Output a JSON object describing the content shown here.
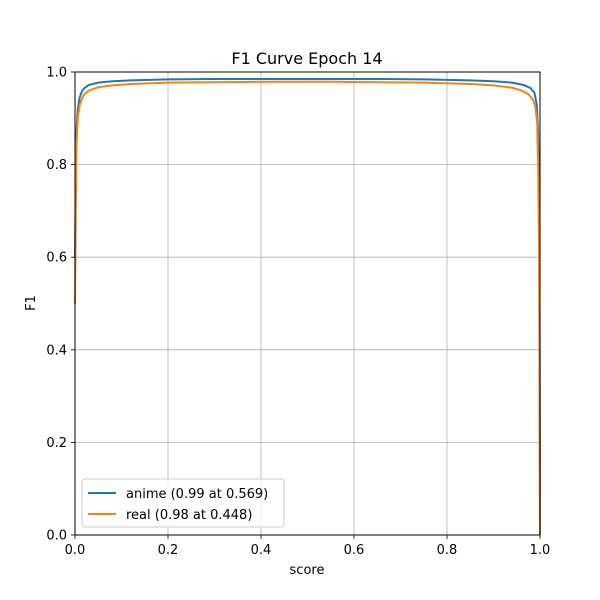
{
  "chart_data": {
    "type": "line",
    "title": "F1 Curve Epoch 14",
    "xlabel": "score",
    "ylabel": "F1",
    "xlim": [
      0,
      1
    ],
    "ylim": [
      0,
      1
    ],
    "xticks": [
      "0.0",
      "0.2",
      "0.4",
      "0.6",
      "0.8",
      "1.0"
    ],
    "yticks": [
      "0.0",
      "0.2",
      "0.4",
      "0.6",
      "0.8",
      "1.0"
    ],
    "grid": true,
    "legend_position": "lower-left",
    "series": [
      {
        "name": "anime (0.99 at 0.569)",
        "color": "#1f77b4",
        "x": [
          0.0,
          0.003,
          0.006,
          0.01,
          0.015,
          0.02,
          0.03,
          0.05,
          0.08,
          0.12,
          0.2,
          0.3,
          0.4,
          0.5,
          0.569,
          0.65,
          0.75,
          0.85,
          0.9,
          0.94,
          0.965,
          0.98,
          0.988,
          0.993,
          0.996,
          0.998,
          0.999,
          1.0
        ],
        "y": [
          0.6,
          0.87,
          0.92,
          0.945,
          0.958,
          0.965,
          0.972,
          0.977,
          0.98,
          0.982,
          0.984,
          0.985,
          0.985,
          0.985,
          0.985,
          0.985,
          0.984,
          0.982,
          0.98,
          0.977,
          0.972,
          0.965,
          0.955,
          0.93,
          0.87,
          0.75,
          0.5,
          0.02
        ]
      },
      {
        "name": "real (0.98 at 0.448)",
        "color": "#ff7f0e",
        "x": [
          0.0,
          0.003,
          0.006,
          0.01,
          0.015,
          0.02,
          0.03,
          0.05,
          0.08,
          0.12,
          0.2,
          0.3,
          0.448,
          0.55,
          0.65,
          0.75,
          0.85,
          0.9,
          0.94,
          0.96,
          0.975,
          0.985,
          0.99,
          0.994,
          0.996,
          0.998,
          0.999,
          1.0
        ],
        "y": [
          0.5,
          0.84,
          0.9,
          0.928,
          0.942,
          0.952,
          0.96,
          0.967,
          0.971,
          0.974,
          0.977,
          0.978,
          0.979,
          0.979,
          0.978,
          0.977,
          0.974,
          0.971,
          0.966,
          0.96,
          0.952,
          0.94,
          0.925,
          0.89,
          0.8,
          0.6,
          0.35,
          0.0
        ]
      }
    ]
  }
}
